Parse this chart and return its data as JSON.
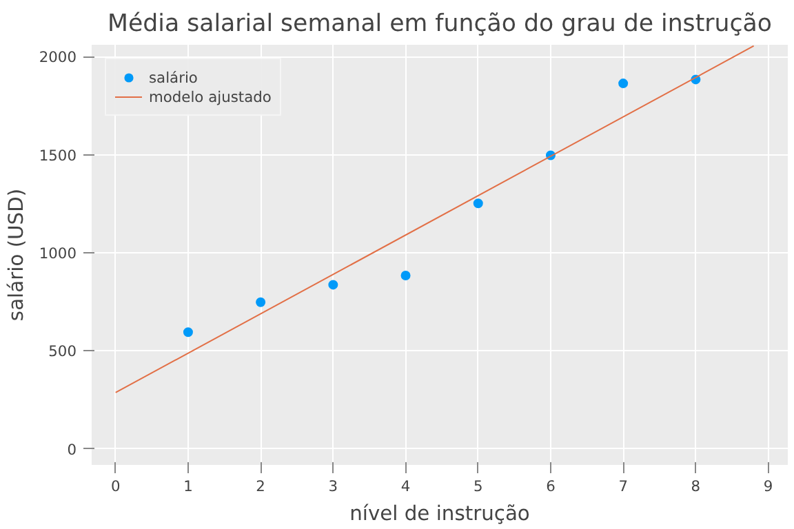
{
  "chart_data": {
    "type": "scatter",
    "title": "Média salarial semanal em função do grau de instrução",
    "xlabel": "nível de instrução",
    "ylabel": "salário (USD)",
    "xlim": [
      -0.33,
      9.27
    ],
    "ylim": [
      -82,
      2061
    ],
    "xticks": [
      0,
      1,
      2,
      3,
      4,
      5,
      6,
      7,
      8,
      9
    ],
    "yticks": [
      0,
      500,
      1000,
      1500,
      2000
    ],
    "grid": true,
    "legend": "top left",
    "series": [
      {
        "name": "salário",
        "marker": "circle",
        "color": "#009af9",
        "x": [
          1,
          2,
          3,
          4,
          5,
          6,
          7,
          8
        ],
        "values": [
          595,
          748,
          837,
          884,
          1252,
          1497,
          1864,
          1884
        ]
      },
      {
        "name": "modelo ajustado",
        "type": "line",
        "color": "#e26f46",
        "x": [
          0,
          8.8
        ],
        "values": [
          287,
          2055
        ]
      }
    ]
  }
}
